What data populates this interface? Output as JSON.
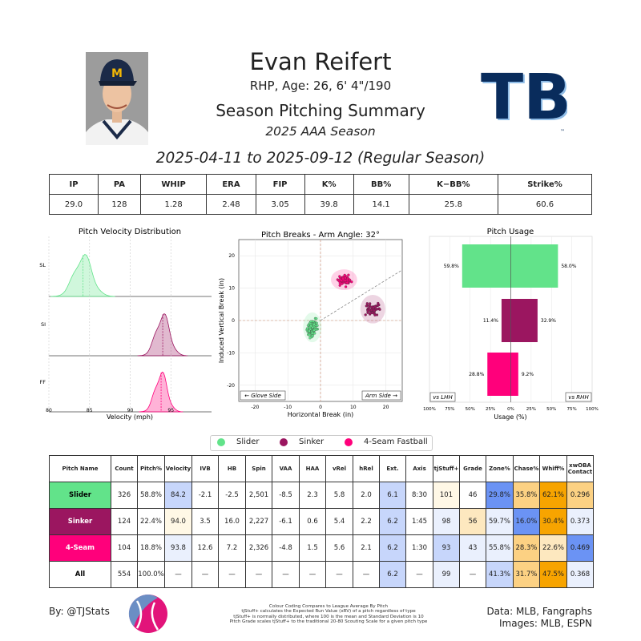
{
  "header": {
    "name": "Evan Reifert",
    "bio": "RHP, Age: 26, 6' 4\"/190",
    "title": "Season Pitching Summary",
    "season": "2025 AAA Season",
    "dates": "2025-04-11 to 2025-09-12 (Regular Season)",
    "team_logo_text": "TB",
    "tm_mark": "™"
  },
  "colors": {
    "slider": "#62e38a",
    "sinker": "#9b1660",
    "fastball": "#ff007b",
    "blue_strong": "#6b93f4",
    "blue_light": "#c7d6fb",
    "blue_pale": "#eaf0fd",
    "orange_strong": "#f7a400",
    "orange_mid": "#fcd183",
    "orange_light": "#fde8bf",
    "cream": "#fff8e6"
  },
  "season_stats": {
    "headers": [
      "IP",
      "PA",
      "WHIP",
      "ERA",
      "FIP",
      "K%",
      "BB%",
      "K−BB%",
      "Strike%"
    ],
    "values": [
      "29.0",
      "128",
      "1.28",
      "2.48",
      "3.05",
      "39.8",
      "14.1",
      "25.8",
      "60.6"
    ]
  },
  "velocity_chart": {
    "title": "Pitch Velocity Distribution",
    "xlabel": "Velocity (mph)",
    "x_ticks": [
      "80",
      "85",
      "90",
      "95"
    ],
    "rows": [
      {
        "label": "SL",
        "mean": 84.2
      },
      {
        "label": "SI",
        "mean": 94.0
      },
      {
        "label": "FF",
        "mean": 93.8
      }
    ]
  },
  "breaks_chart": {
    "title": "Pitch Breaks - Arm Angle: 32°",
    "xlabel": "Horizontal Break (in)",
    "ylabel": "Induced Vertical Break (in)",
    "x_ticks": [
      "-20",
      "-10",
      "0",
      "10",
      "20"
    ],
    "y_ticks": [
      "20",
      "10",
      "0",
      "-10",
      "-20"
    ],
    "glove_label": "← Glove Side",
    "arm_label": "Arm Side →"
  },
  "usage_chart": {
    "title": "Pitch Usage",
    "xlabel": "Usage (%)",
    "x_ticks": [
      "100%",
      "75%",
      "50%",
      "25%",
      "0%",
      "25%",
      "50%",
      "75%",
      "100%"
    ],
    "lhh_label": "vs LHH",
    "rhh_label": "vs RHH",
    "bars": [
      {
        "pitch": "Slider",
        "lhh": 59.8,
        "rhh": 58.0,
        "lhh_label": "59.8%",
        "rhh_label": "58.0%"
      },
      {
        "pitch": "Sinker",
        "lhh": 11.4,
        "rhh": 32.9,
        "lhh_label": "11.4%",
        "rhh_label": "32.9%"
      },
      {
        "pitch": "4-Seam Fastball",
        "lhh": 28.8,
        "rhh": 9.2,
        "lhh_label": "28.8%",
        "rhh_label": "9.2%"
      }
    ]
  },
  "legend": {
    "items": [
      "Slider",
      "Sinker",
      "4-Seam Fastball"
    ]
  },
  "pitch_table": {
    "headers": [
      "Pitch Name",
      "Count",
      "Pitch%",
      "Velocity",
      "IVB",
      "HB",
      "Spin",
      "VAA",
      "HAA",
      "vRel",
      "hRel",
      "Ext.",
      "Axis",
      "tjStuff+",
      "Grade",
      "Zone%",
      "Chase%",
      "Whiff%",
      "xwOBA Contact"
    ],
    "rows": [
      [
        "Slider",
        "326",
        "58.8%",
        "84.2",
        "-2.1",
        "-2.5",
        "2,501",
        "-8.5",
        "2.3",
        "5.8",
        "2.0",
        "6.1",
        "8:30",
        "101",
        "46",
        "29.8%",
        "35.8%",
        "62.1%",
        "0.296"
      ],
      [
        "Sinker",
        "124",
        "22.4%",
        "94.0",
        "3.5",
        "16.0",
        "2,227",
        "-6.1",
        "0.6",
        "5.4",
        "2.2",
        "6.2",
        "1:45",
        "98",
        "56",
        "59.7%",
        "16.0%",
        "30.4%",
        "0.373"
      ],
      [
        "4-Seam",
        "104",
        "18.8%",
        "93.8",
        "12.6",
        "7.2",
        "2,326",
        "-4.8",
        "1.5",
        "5.6",
        "2.1",
        "6.2",
        "1:30",
        "93",
        "43",
        "55.8%",
        "28.3%",
        "22.6%",
        "0.469"
      ],
      [
        "All",
        "554",
        "100.0%",
        "—",
        "—",
        "—",
        "—",
        "—",
        "—",
        "—",
        "—",
        "6.2",
        "—",
        "99",
        "—",
        "41.3%",
        "31.7%",
        "47.5%",
        "0.368"
      ]
    ]
  },
  "footer": {
    "by": "By: @TJStats",
    "note": [
      "Colour Coding Compares to League Average By Pitch",
      "tjStuff+ calculates the Expected Run Value (xRV) of a pitch regardless of type",
      "tjStuff+ is normally distributed, where 100 is the mean and Standard Deviation is 10",
      "Pitch Grade scales tjStuff+ to the traditional 20-80 Scouting Scale for a given pitch type"
    ],
    "data_src": "Data: MLB, Fangraphs",
    "image_src": "Images: MLB, ESPN"
  }
}
